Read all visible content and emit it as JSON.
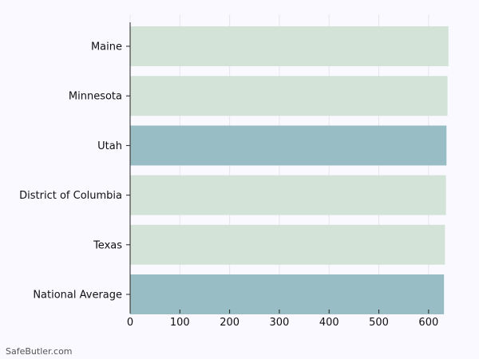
{
  "chart_data": {
    "type": "bar",
    "orientation": "horizontal",
    "categories": [
      "Maine",
      "Minnesota",
      "Utah",
      "District of Columbia",
      "Texas",
      "National Average"
    ],
    "values": [
      640,
      638,
      636,
      635,
      633,
      631
    ],
    "bar_colors": [
      "#d4e3d8",
      "#d4e3d8",
      "#98bdc5",
      "#d4e3d8",
      "#d4e3d8",
      "#98bdc5"
    ],
    "xlim": [
      0,
      650
    ],
    "xticks": [
      0,
      100,
      200,
      300,
      400,
      500,
      600
    ],
    "grid": true,
    "title": "",
    "xlabel": "",
    "ylabel": ""
  },
  "watermark": "SafeButler.com"
}
